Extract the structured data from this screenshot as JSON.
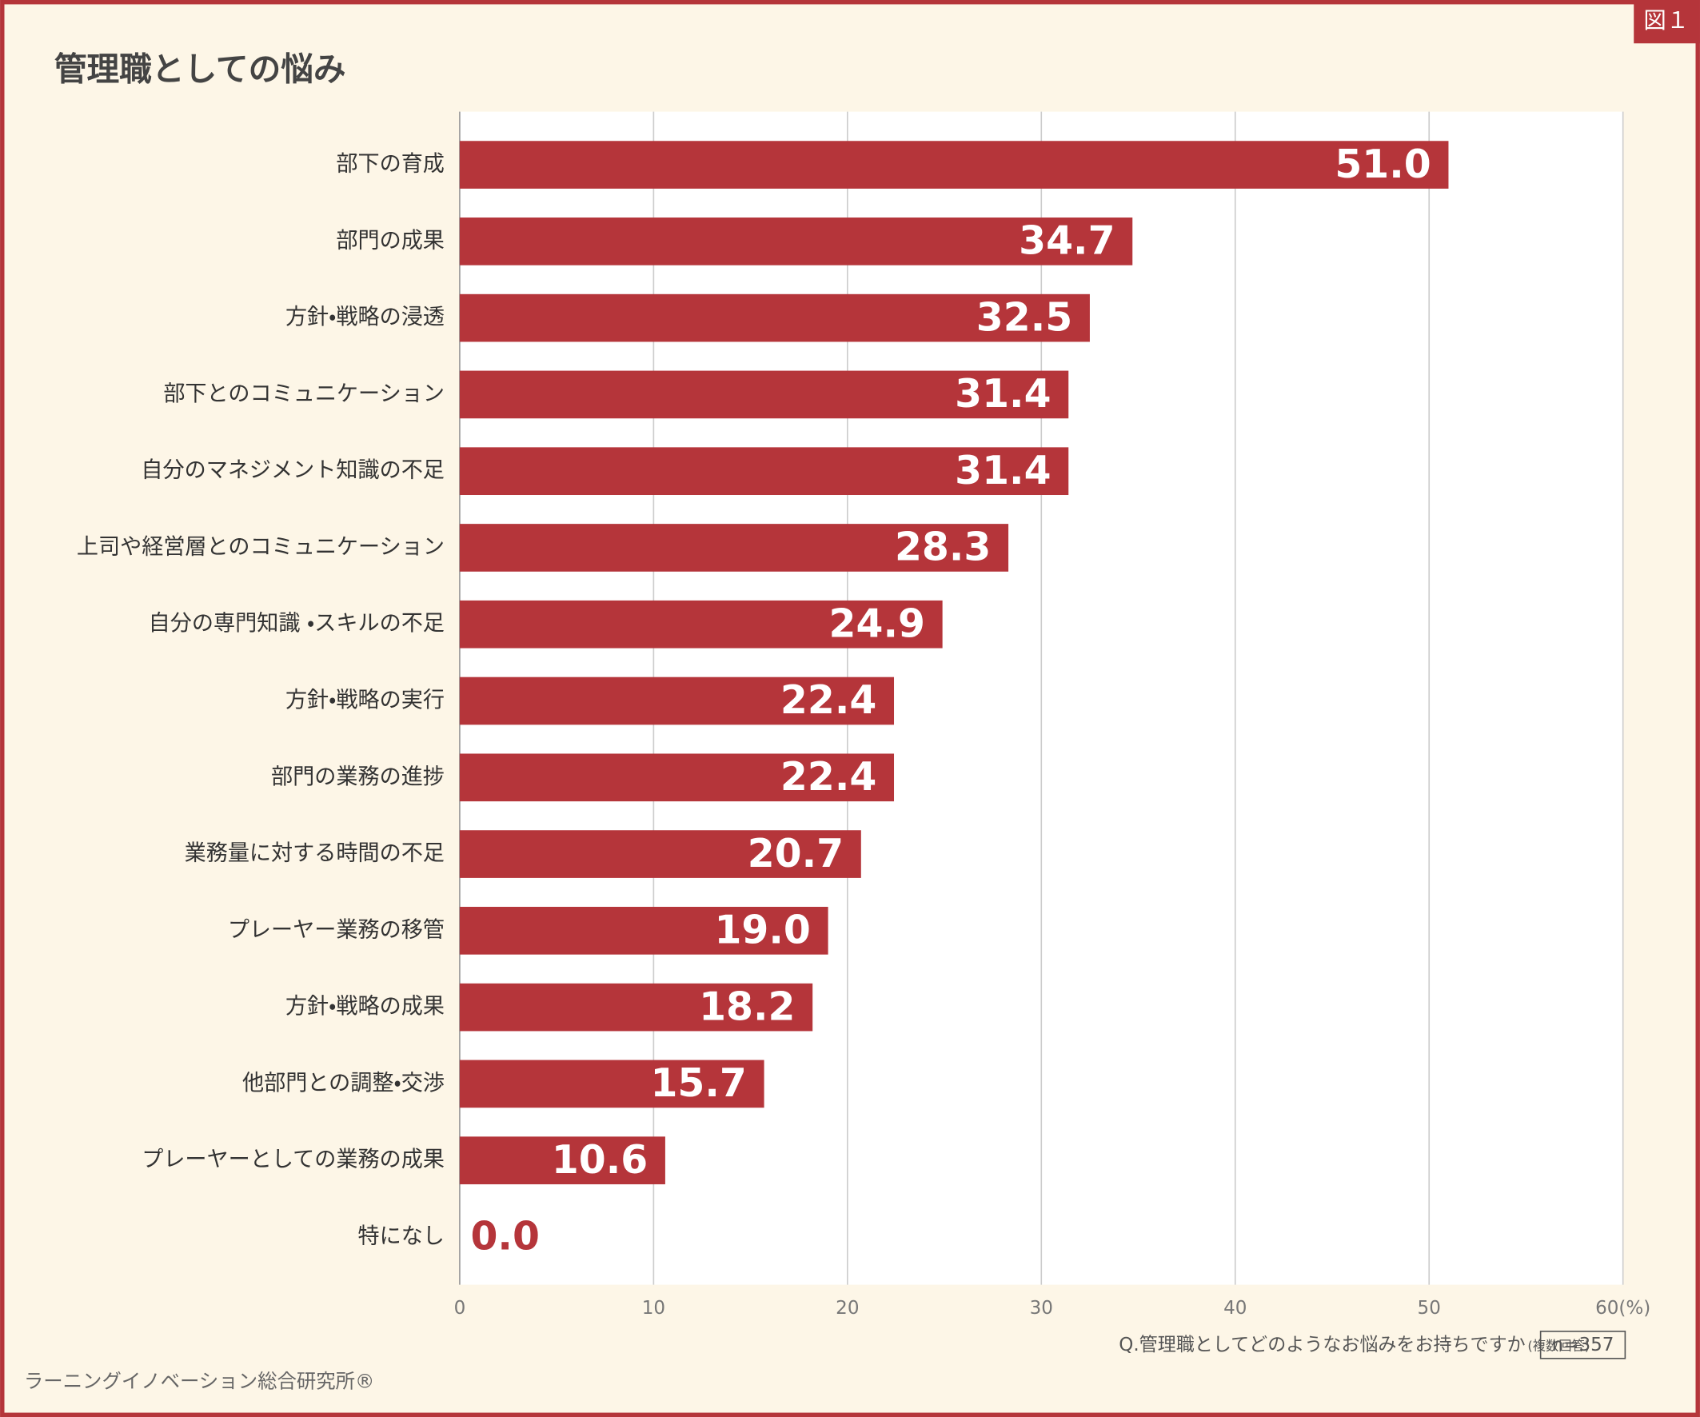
{
  "chart_data": {
    "type": "bar",
    "orientation": "horizontal",
    "title": "管理職としての悩み",
    "figure_label": "図１",
    "categories": [
      "部下の育成",
      "部門の成果",
      "方針・戦略の浸透",
      "部下とのコミュニケーション",
      "自分のマネジメント知識の不足",
      "上司や経営層とのコミュニケーション",
      "自分の専門知識 ・スキルの不足",
      "方針・戦略の実行",
      "部門の業務の進捗",
      "業務量に対する時間の不足",
      "プレーヤー業務の移管",
      "方針・戦略の成果",
      "他部門との調整・交渉",
      "プレーヤーとしての業務の成果",
      "特になし"
    ],
    "values": [
      51.0,
      34.7,
      32.5,
      31.4,
      31.4,
      28.3,
      24.9,
      22.4,
      22.4,
      20.7,
      19.0,
      18.2,
      15.7,
      10.6,
      0.0
    ],
    "value_labels": [
      "51.0",
      "34.7",
      "32.5",
      "31.4",
      "31.4",
      "28.3",
      "24.9",
      "22.4",
      "22.4",
      "20.7",
      "19.0",
      "18.2",
      "15.7",
      "10.6",
      "0.0"
    ],
    "color": "#b5353a",
    "xlim": [
      0,
      60
    ],
    "xticks": [
      0,
      10,
      20,
      30,
      40,
      50,
      {
        "value": 60,
        "label": "60(%)"
      }
    ],
    "grid": true,
    "question": "Q.管理職としてどのようなお悩みをお持ちですか",
    "question_note": "(複数回答)",
    "sample": "n=357",
    "source": "ラーニングイノベーション総合研究所®"
  }
}
